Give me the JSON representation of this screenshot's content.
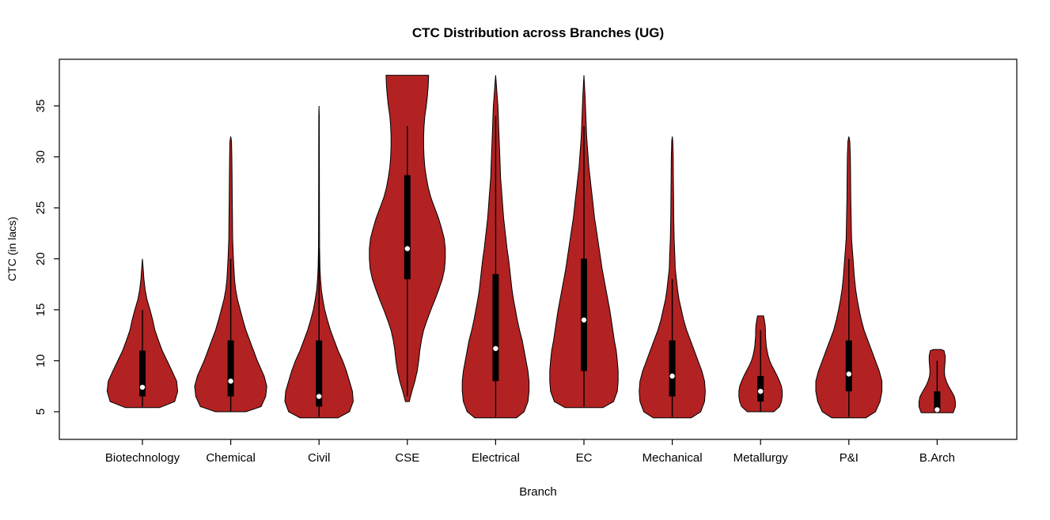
{
  "window": {
    "background": "#ffffff"
  },
  "chart_data": {
    "type": "violin",
    "title": "CTC Distribution across Branches (UG)",
    "xlabel": "Branch",
    "ylabel": "CTC (in lacs)",
    "ylim": [
      3.2,
      39.6
    ],
    "yticks": [
      5,
      10,
      15,
      20,
      25,
      30,
      35
    ],
    "grid": false,
    "legend": "none",
    "colors": {
      "violin_fill": "#B22222",
      "outline": "#000000",
      "box_fill": "#000000",
      "median_dot": "#FFFFFF",
      "axis": "#000000"
    },
    "categories": [
      "Biotechnology",
      "Chemical",
      "Civil",
      "CSE",
      "Electrical",
      "EC",
      "Mechanical",
      "Metallurgy",
      "P&I",
      "B.Arch"
    ],
    "series": [
      {
        "name": "Biotechnology",
        "min": 5.4,
        "max": 20,
        "median": 7.4,
        "q1": 6.5,
        "q3": 11,
        "whisker_low": 5.5,
        "whisker_high": 15,
        "density": [
          [
            5.4,
            0.45
          ],
          [
            6,
            0.85
          ],
          [
            7,
            0.93
          ],
          [
            8,
            0.9
          ],
          [
            9,
            0.78
          ],
          [
            10,
            0.65
          ],
          [
            11,
            0.52
          ],
          [
            12,
            0.42
          ],
          [
            13,
            0.33
          ],
          [
            14,
            0.27
          ],
          [
            15,
            0.2
          ],
          [
            16,
            0.12
          ],
          [
            17,
            0.07
          ],
          [
            18,
            0.04
          ],
          [
            19,
            0.02
          ],
          [
            20,
            0.0
          ]
        ]
      },
      {
        "name": "Chemical",
        "min": 5,
        "max": 32,
        "median": 8,
        "q1": 6.5,
        "q3": 12,
        "whisker_low": 5,
        "whisker_high": 20,
        "density": [
          [
            5,
            0.4
          ],
          [
            5.5,
            0.8
          ],
          [
            6.5,
            0.92
          ],
          [
            7.5,
            0.95
          ],
          [
            8.5,
            0.88
          ],
          [
            10,
            0.7
          ],
          [
            11,
            0.6
          ],
          [
            12,
            0.5
          ],
          [
            13,
            0.4
          ],
          [
            14,
            0.32
          ],
          [
            15,
            0.25
          ],
          [
            16,
            0.18
          ],
          [
            17,
            0.13
          ],
          [
            18,
            0.1
          ],
          [
            20,
            0.07
          ],
          [
            22,
            0.05
          ],
          [
            24,
            0.045
          ],
          [
            26,
            0.04
          ],
          [
            28,
            0.035
          ],
          [
            30,
            0.03
          ],
          [
            31.5,
            0.02
          ],
          [
            32,
            0.0
          ]
        ]
      },
      {
        "name": "Civil",
        "min": 4.4,
        "max": 35,
        "median": 6.5,
        "q1": 5.5,
        "q3": 12,
        "whisker_low": 4.5,
        "whisker_high": 21,
        "density": [
          [
            4.4,
            0.5
          ],
          [
            5,
            0.8
          ],
          [
            6,
            0.9
          ],
          [
            7,
            0.88
          ],
          [
            8,
            0.8
          ],
          [
            9,
            0.72
          ],
          [
            10,
            0.62
          ],
          [
            11,
            0.5
          ],
          [
            12,
            0.4
          ],
          [
            13,
            0.3
          ],
          [
            14,
            0.22
          ],
          [
            15,
            0.15
          ],
          [
            16,
            0.1
          ],
          [
            17,
            0.06
          ],
          [
            18,
            0.04
          ],
          [
            19,
            0.025
          ],
          [
            21,
            0.015
          ],
          [
            25,
            0.01
          ],
          [
            30,
            0.008
          ],
          [
            34,
            0.006
          ],
          [
            35,
            0.0
          ]
        ]
      },
      {
        "name": "CSE",
        "min": 6,
        "max": 38,
        "median": 21,
        "q1": 18,
        "q3": 28.2,
        "whisker_low": 6.5,
        "whisker_high": 33,
        "density": [
          [
            6,
            0.05
          ],
          [
            7,
            0.12
          ],
          [
            8,
            0.2
          ],
          [
            9,
            0.26
          ],
          [
            10,
            0.3
          ],
          [
            11,
            0.33
          ],
          [
            12,
            0.37
          ],
          [
            13,
            0.43
          ],
          [
            14,
            0.52
          ],
          [
            15,
            0.62
          ],
          [
            16,
            0.73
          ],
          [
            17,
            0.83
          ],
          [
            18,
            0.92
          ],
          [
            19,
            0.98
          ],
          [
            20,
            1.0
          ],
          [
            21,
            1.0
          ],
          [
            22,
            0.97
          ],
          [
            23,
            0.9
          ],
          [
            24,
            0.82
          ],
          [
            25,
            0.72
          ],
          [
            26,
            0.62
          ],
          [
            27,
            0.55
          ],
          [
            28,
            0.5
          ],
          [
            29,
            0.46
          ],
          [
            30,
            0.44
          ],
          [
            31,
            0.43
          ],
          [
            32,
            0.43
          ],
          [
            33,
            0.44
          ],
          [
            34,
            0.46
          ],
          [
            35,
            0.5
          ],
          [
            36,
            0.53
          ],
          [
            37,
            0.55
          ],
          [
            38,
            0.56
          ]
        ]
      },
      {
        "name": "Electrical",
        "min": 4.4,
        "max": 38,
        "median": 11.2,
        "q1": 8,
        "q3": 18.5,
        "whisker_low": 4.5,
        "whisker_high": 34,
        "density": [
          [
            4.4,
            0.55
          ],
          [
            5,
            0.75
          ],
          [
            6,
            0.85
          ],
          [
            7,
            0.88
          ],
          [
            8,
            0.88
          ],
          [
            9,
            0.85
          ],
          [
            10,
            0.8
          ],
          [
            11,
            0.75
          ],
          [
            12,
            0.7
          ],
          [
            13,
            0.63
          ],
          [
            14,
            0.57
          ],
          [
            15,
            0.52
          ],
          [
            16,
            0.47
          ],
          [
            17,
            0.43
          ],
          [
            18,
            0.4
          ],
          [
            19,
            0.37
          ],
          [
            20,
            0.34
          ],
          [
            21,
            0.3
          ],
          [
            22,
            0.27
          ],
          [
            23,
            0.24
          ],
          [
            24,
            0.21
          ],
          [
            25,
            0.19
          ],
          [
            26,
            0.17
          ],
          [
            27,
            0.15
          ],
          [
            28,
            0.13
          ],
          [
            29,
            0.12
          ],
          [
            30,
            0.11
          ],
          [
            31,
            0.1
          ],
          [
            32,
            0.09
          ],
          [
            33,
            0.08
          ],
          [
            34,
            0.07
          ],
          [
            35,
            0.06
          ],
          [
            36,
            0.04
          ],
          [
            37,
            0.02
          ],
          [
            38,
            0.0
          ]
        ]
      },
      {
        "name": "EC",
        "min": 5.4,
        "max": 38,
        "median": 14,
        "q1": 9,
        "q3": 20,
        "whisker_low": 5.5,
        "whisker_high": 33,
        "density": [
          [
            5.4,
            0.5
          ],
          [
            6,
            0.78
          ],
          [
            7,
            0.88
          ],
          [
            8,
            0.9
          ],
          [
            9,
            0.9
          ],
          [
            10,
            0.88
          ],
          [
            11,
            0.85
          ],
          [
            12,
            0.8
          ],
          [
            13,
            0.76
          ],
          [
            14,
            0.72
          ],
          [
            15,
            0.68
          ],
          [
            16,
            0.63
          ],
          [
            17,
            0.58
          ],
          [
            18,
            0.53
          ],
          [
            19,
            0.48
          ],
          [
            20,
            0.44
          ],
          [
            21,
            0.4
          ],
          [
            22,
            0.36
          ],
          [
            23,
            0.32
          ],
          [
            24,
            0.28
          ],
          [
            25,
            0.25
          ],
          [
            26,
            0.22
          ],
          [
            27,
            0.19
          ],
          [
            28,
            0.16
          ],
          [
            29,
            0.13
          ],
          [
            30,
            0.11
          ],
          [
            31,
            0.09
          ],
          [
            32,
            0.07
          ],
          [
            33,
            0.06
          ],
          [
            34,
            0.05
          ],
          [
            35,
            0.04
          ],
          [
            36,
            0.03
          ],
          [
            37,
            0.015
          ],
          [
            38,
            0.0
          ]
        ]
      },
      {
        "name": "Mechanical",
        "min": 4.4,
        "max": 32,
        "median": 8.5,
        "q1": 6.5,
        "q3": 12,
        "whisker_low": 4.5,
        "whisker_high": 18,
        "density": [
          [
            4.4,
            0.5
          ],
          [
            5,
            0.75
          ],
          [
            6,
            0.85
          ],
          [
            7,
            0.87
          ],
          [
            8,
            0.85
          ],
          [
            9,
            0.78
          ],
          [
            10,
            0.68
          ],
          [
            11,
            0.58
          ],
          [
            12,
            0.48
          ],
          [
            13,
            0.38
          ],
          [
            14,
            0.3
          ],
          [
            15,
            0.24
          ],
          [
            16,
            0.18
          ],
          [
            17,
            0.14
          ],
          [
            18,
            0.11
          ],
          [
            19,
            0.08
          ],
          [
            20,
            0.07
          ],
          [
            21,
            0.06
          ],
          [
            22,
            0.05
          ],
          [
            24,
            0.04
          ],
          [
            26,
            0.035
          ],
          [
            28,
            0.03
          ],
          [
            30,
            0.025
          ],
          [
            31.5,
            0.015
          ],
          [
            32,
            0.0
          ]
        ]
      },
      {
        "name": "Metallurgy",
        "min": 5,
        "max": 14.4,
        "median": 7,
        "q1": 6,
        "q3": 8.5,
        "whisker_low": 5,
        "whisker_high": 13,
        "density": [
          [
            5,
            0.35
          ],
          [
            5.5,
            0.5
          ],
          [
            6,
            0.55
          ],
          [
            6.5,
            0.57
          ],
          [
            7,
            0.57
          ],
          [
            7.5,
            0.55
          ],
          [
            8,
            0.5
          ],
          [
            8.5,
            0.44
          ],
          [
            9,
            0.37
          ],
          [
            9.5,
            0.3
          ],
          [
            10,
            0.24
          ],
          [
            10.5,
            0.2
          ],
          [
            11,
            0.17
          ],
          [
            11.5,
            0.15
          ],
          [
            12,
            0.14
          ],
          [
            12.5,
            0.13
          ],
          [
            13,
            0.13
          ],
          [
            13.5,
            0.12
          ],
          [
            14,
            0.1
          ],
          [
            14.4,
            0.08
          ]
        ]
      },
      {
        "name": "P&I",
        "min": 4.4,
        "max": 32,
        "median": 8.7,
        "q1": 7,
        "q3": 12,
        "whisker_low": 4.5,
        "whisker_high": 20,
        "density": [
          [
            4.4,
            0.45
          ],
          [
            5,
            0.7
          ],
          [
            6,
            0.82
          ],
          [
            7,
            0.87
          ],
          [
            8,
            0.87
          ],
          [
            9,
            0.8
          ],
          [
            10,
            0.7
          ],
          [
            11,
            0.6
          ],
          [
            12,
            0.5
          ],
          [
            13,
            0.4
          ],
          [
            14,
            0.33
          ],
          [
            15,
            0.27
          ],
          [
            16,
            0.22
          ],
          [
            17,
            0.18
          ],
          [
            18,
            0.15
          ],
          [
            19,
            0.13
          ],
          [
            20,
            0.11
          ],
          [
            21,
            0.09
          ],
          [
            22,
            0.07
          ],
          [
            24,
            0.06
          ],
          [
            26,
            0.05
          ],
          [
            28,
            0.045
          ],
          [
            30,
            0.04
          ],
          [
            31.5,
            0.025
          ],
          [
            32,
            0.0
          ]
        ]
      },
      {
        "name": "B.Arch",
        "min": 4.9,
        "max": 11.1,
        "median": 5.2,
        "q1": 5,
        "q3": 7,
        "whisker_low": 4.9,
        "whisker_high": 10,
        "density": [
          [
            4.9,
            0.42
          ],
          [
            5.5,
            0.48
          ],
          [
            6,
            0.48
          ],
          [
            6.5,
            0.45
          ],
          [
            7,
            0.38
          ],
          [
            7.5,
            0.3
          ],
          [
            8,
            0.24
          ],
          [
            8.5,
            0.2
          ],
          [
            9,
            0.19
          ],
          [
            9.5,
            0.2
          ],
          [
            10,
            0.21
          ],
          [
            10.5,
            0.21
          ],
          [
            11,
            0.18
          ],
          [
            11.1,
            0.1
          ]
        ]
      }
    ]
  }
}
